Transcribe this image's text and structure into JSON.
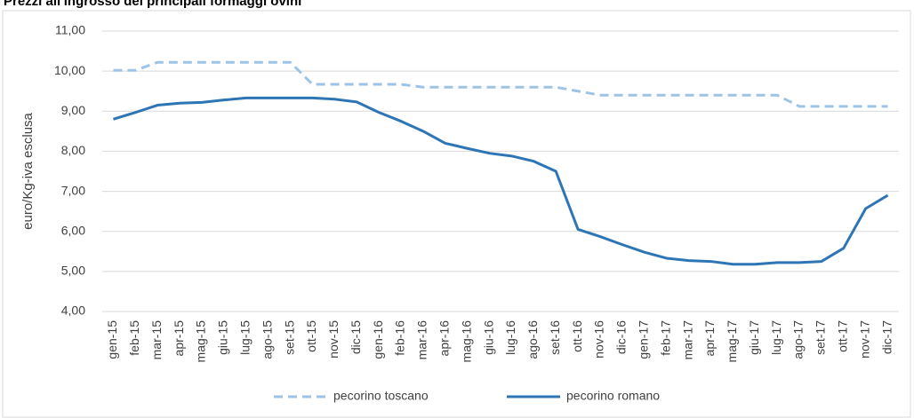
{
  "chart_data": {
    "type": "line",
    "title": "Prezzi all'ingrosso dei principali formaggi ovini",
    "ylabel": "euro/Kg-iva esclusa",
    "categories": [
      "gen-15",
      "feb-15",
      "mar-15",
      "apr-15",
      "mag-15",
      "giu-15",
      "lug-15",
      "ago-15",
      "set-15",
      "ott-15",
      "nov-15",
      "dic-15",
      "gen-16",
      "feb-16",
      "mar-16",
      "apr-16",
      "mag-16",
      "giu-16",
      "lug-16",
      "ago-16",
      "set-16",
      "ott-16",
      "nov-16",
      "dic-16",
      "gen-17",
      "feb-17",
      "mar-17",
      "apr-17",
      "mag-17",
      "giu-17",
      "lug-17",
      "ago-17",
      "set-17",
      "ott-17",
      "nov-17",
      "dic-17"
    ],
    "series": [
      {
        "name": "pecorino toscano",
        "color": "#9dc3e6",
        "dashed": true,
        "values": [
          10.02,
          10.02,
          10.22,
          10.22,
          10.22,
          10.22,
          10.22,
          10.22,
          10.22,
          9.67,
          9.67,
          9.67,
          9.67,
          9.67,
          9.6,
          9.6,
          9.6,
          9.6,
          9.6,
          9.6,
          9.6,
          9.5,
          9.4,
          9.4,
          9.4,
          9.4,
          9.4,
          9.4,
          9.4,
          9.4,
          9.4,
          9.12,
          9.12,
          9.12,
          9.12,
          9.12
        ]
      },
      {
        "name": "pecorino romano",
        "color": "#2e75b6",
        "dashed": false,
        "values": [
          8.8,
          8.97,
          9.15,
          9.2,
          9.22,
          9.28,
          9.33,
          9.33,
          9.33,
          9.33,
          9.3,
          9.23,
          8.97,
          8.75,
          8.5,
          8.2,
          8.07,
          7.95,
          7.88,
          7.75,
          7.5,
          6.05,
          5.87,
          5.67,
          5.48,
          5.33,
          5.27,
          5.25,
          5.18,
          5.18,
          5.22,
          5.22,
          5.25,
          5.58,
          6.57,
          6.9
        ]
      }
    ],
    "ylim": [
      4,
      11
    ],
    "yticks": [
      {
        "value": 4,
        "label": "4,00"
      },
      {
        "value": 5,
        "label": "5,00"
      },
      {
        "value": 6,
        "label": "6,00"
      },
      {
        "value": 7,
        "label": "7,00"
      },
      {
        "value": 8,
        "label": "8,00"
      },
      {
        "value": 9,
        "label": "9,00"
      },
      {
        "value": 10,
        "label": "10,00"
      },
      {
        "value": 11,
        "label": "11,00"
      }
    ],
    "grid": true,
    "legend": "bottom"
  }
}
